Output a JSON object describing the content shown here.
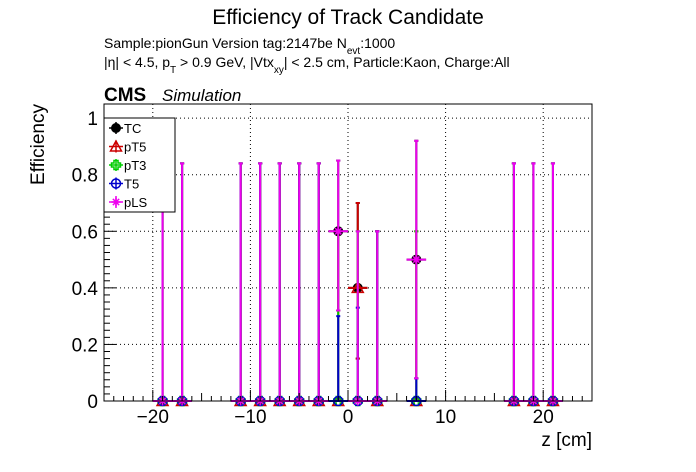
{
  "header": {
    "title": "Efficiency of Track Candidate",
    "info_line1_prefix": "Sample:pionGun   Version tag:2147be  N",
    "info_line1_sub": "evt",
    "info_line1_suffix": ":1000",
    "info_line2_a": "|η| < 4.5, p",
    "info_line2_sub1": "T",
    "info_line2_b": " > 0.9 GeV, |Vtx",
    "info_line2_sub2": "xy",
    "info_line2_c": "| < 2.5 cm, Particle:Kaon, Charge:All"
  },
  "cms": {
    "label": "CMS",
    "sublabel": "Simulation"
  },
  "chart_data": {
    "type": "scatter",
    "title": "Efficiency of Track Candidate",
    "xlabel": "z [cm]",
    "ylabel": "Efficiency",
    "xlim": [
      -25,
      25
    ],
    "ylim": [
      0,
      1.05
    ],
    "x_ticks": [
      -20,
      -10,
      0,
      10,
      20
    ],
    "x_tick_labels": [
      "−20",
      "−10",
      "0",
      "10",
      "20"
    ],
    "y_ticks": [
      0,
      0.2,
      0.4,
      0.6,
      0.8,
      1
    ],
    "y_tick_labels": [
      "0",
      "0.2",
      "0.4",
      "0.6",
      "0.8",
      "1"
    ],
    "grid": true,
    "legend_position": "top-left",
    "x_half_width": 1,
    "series": [
      {
        "name": "TC",
        "color": "#000000",
        "marker": "filled-circle",
        "points": [
          {
            "x": -19,
            "y": 0,
            "lo": 0,
            "hi": 0.84
          },
          {
            "x": -17,
            "y": 0,
            "lo": 0,
            "hi": 0.84
          },
          {
            "x": -11,
            "y": 0,
            "lo": 0,
            "hi": 0.84
          },
          {
            "x": -9,
            "y": 0,
            "lo": 0,
            "hi": 0.84
          },
          {
            "x": -7,
            "y": 0,
            "lo": 0,
            "hi": 0.84
          },
          {
            "x": -5,
            "y": 0,
            "lo": 0,
            "hi": 0.84
          },
          {
            "x": -3,
            "y": 0,
            "lo": 0,
            "hi": 0.84
          },
          {
            "x": -1,
            "y": 0.6,
            "lo": 0.32,
            "hi": 0.85
          },
          {
            "x": 1,
            "y": 0.4,
            "lo": 0.15,
            "hi": 0.7
          },
          {
            "x": 3,
            "y": 0,
            "lo": 0,
            "hi": 0.6
          },
          {
            "x": 7,
            "y": 0.5,
            "lo": 0.08,
            "hi": 0.92
          },
          {
            "x": 17,
            "y": 0,
            "lo": 0,
            "hi": 0.84
          },
          {
            "x": 19,
            "y": 0,
            "lo": 0,
            "hi": 0.84
          },
          {
            "x": 21,
            "y": 0,
            "lo": 0,
            "hi": 0.84
          }
        ]
      },
      {
        "name": "pT5",
        "color": "#cc0000",
        "marker": "open-triangle",
        "points": [
          {
            "x": -19,
            "y": 0,
            "lo": 0,
            "hi": 0.84
          },
          {
            "x": -17,
            "y": 0,
            "lo": 0,
            "hi": 0.84
          },
          {
            "x": -11,
            "y": 0,
            "lo": 0,
            "hi": 0.84
          },
          {
            "x": -9,
            "y": 0,
            "lo": 0,
            "hi": 0.84
          },
          {
            "x": -7,
            "y": 0,
            "lo": 0,
            "hi": 0.84
          },
          {
            "x": -5,
            "y": 0,
            "lo": 0,
            "hi": 0.84
          },
          {
            "x": -3,
            "y": 0,
            "lo": 0,
            "hi": 0.84
          },
          {
            "x": -1,
            "y": 0,
            "lo": 0,
            "hi": 0.6
          },
          {
            "x": 1,
            "y": 0.4,
            "lo": 0.15,
            "hi": 0.7
          },
          {
            "x": 3,
            "y": 0,
            "lo": 0,
            "hi": 0.6
          },
          {
            "x": 7,
            "y": 0,
            "lo": 0,
            "hi": 0.6
          },
          {
            "x": 17,
            "y": 0,
            "lo": 0,
            "hi": 0.84
          },
          {
            "x": 19,
            "y": 0,
            "lo": 0,
            "hi": 0.84
          },
          {
            "x": 21,
            "y": 0,
            "lo": 0,
            "hi": 0.84
          }
        ]
      },
      {
        "name": "pT3",
        "color": "#00cc00",
        "marker": "open-cross",
        "points": [
          {
            "x": -19,
            "y": 0,
            "lo": 0,
            "hi": 0.84
          },
          {
            "x": -17,
            "y": 0,
            "lo": 0,
            "hi": 0.84
          },
          {
            "x": -11,
            "y": 0,
            "lo": 0,
            "hi": 0.84
          },
          {
            "x": -9,
            "y": 0,
            "lo": 0,
            "hi": 0.84
          },
          {
            "x": -7,
            "y": 0,
            "lo": 0,
            "hi": 0.84
          },
          {
            "x": -5,
            "y": 0,
            "lo": 0,
            "hi": 0.84
          },
          {
            "x": -3,
            "y": 0,
            "lo": 0,
            "hi": 0.84
          },
          {
            "x": -1,
            "y": 0,
            "lo": 0,
            "hi": 0.6
          },
          {
            "x": 1,
            "y": 0,
            "lo": 0,
            "hi": 0.6
          },
          {
            "x": 3,
            "y": 0,
            "lo": 0,
            "hi": 0.6
          },
          {
            "x": 7,
            "y": 0,
            "lo": 0,
            "hi": 0.6
          },
          {
            "x": 17,
            "y": 0,
            "lo": 0,
            "hi": 0.84
          },
          {
            "x": 19,
            "y": 0,
            "lo": 0,
            "hi": 0.84
          },
          {
            "x": 21,
            "y": 0,
            "lo": 0,
            "hi": 0.84
          }
        ]
      },
      {
        "name": "T5",
        "color": "#0000cc",
        "marker": "open-circle",
        "points": [
          {
            "x": -19,
            "y": 0,
            "lo": 0,
            "hi": 0.84
          },
          {
            "x": -17,
            "y": 0,
            "lo": 0,
            "hi": 0.84
          },
          {
            "x": -11,
            "y": 0,
            "lo": 0,
            "hi": 0.84
          },
          {
            "x": -9,
            "y": 0,
            "lo": 0,
            "hi": 0.84
          },
          {
            "x": -7,
            "y": 0,
            "lo": 0,
            "hi": 0.84
          },
          {
            "x": -5,
            "y": 0,
            "lo": 0,
            "hi": 0.84
          },
          {
            "x": -3,
            "y": 0,
            "lo": 0,
            "hi": 0.84
          },
          {
            "x": -1,
            "y": 0,
            "lo": 0,
            "hi": 0.3
          },
          {
            "x": 1,
            "y": 0,
            "lo": 0,
            "hi": 0.33
          },
          {
            "x": 3,
            "y": 0,
            "lo": 0,
            "hi": 0.6
          },
          {
            "x": 7,
            "y": 0,
            "lo": 0,
            "hi": 0.08
          },
          {
            "x": 17,
            "y": 0,
            "lo": 0,
            "hi": 0.84
          },
          {
            "x": 19,
            "y": 0,
            "lo": 0,
            "hi": 0.84
          },
          {
            "x": 21,
            "y": 0,
            "lo": 0,
            "hi": 0.84
          }
        ]
      },
      {
        "name": "pLS",
        "color": "#ee00ee",
        "marker": "open-star",
        "points": [
          {
            "x": -19,
            "y": 0,
            "lo": 0,
            "hi": 0.84
          },
          {
            "x": -17,
            "y": 0,
            "lo": 0,
            "hi": 0.84
          },
          {
            "x": -11,
            "y": 0,
            "lo": 0,
            "hi": 0.84
          },
          {
            "x": -9,
            "y": 0,
            "lo": 0,
            "hi": 0.84
          },
          {
            "x": -7,
            "y": 0,
            "lo": 0,
            "hi": 0.84
          },
          {
            "x": -5,
            "y": 0,
            "lo": 0,
            "hi": 0.84
          },
          {
            "x": -3,
            "y": 0,
            "lo": 0,
            "hi": 0.84
          },
          {
            "x": -1,
            "y": 0.6,
            "lo": 0.32,
            "hi": 0.85
          },
          {
            "x": 1,
            "y": 0,
            "lo": 0,
            "hi": 0.6
          },
          {
            "x": 3,
            "y": 0,
            "lo": 0,
            "hi": 0.6
          },
          {
            "x": 7,
            "y": 0.5,
            "lo": 0.08,
            "hi": 0.92
          },
          {
            "x": 17,
            "y": 0,
            "lo": 0,
            "hi": 0.84
          },
          {
            "x": 19,
            "y": 0,
            "lo": 0,
            "hi": 0.84
          },
          {
            "x": 21,
            "y": 0,
            "lo": 0,
            "hi": 0.84
          }
        ]
      }
    ]
  }
}
